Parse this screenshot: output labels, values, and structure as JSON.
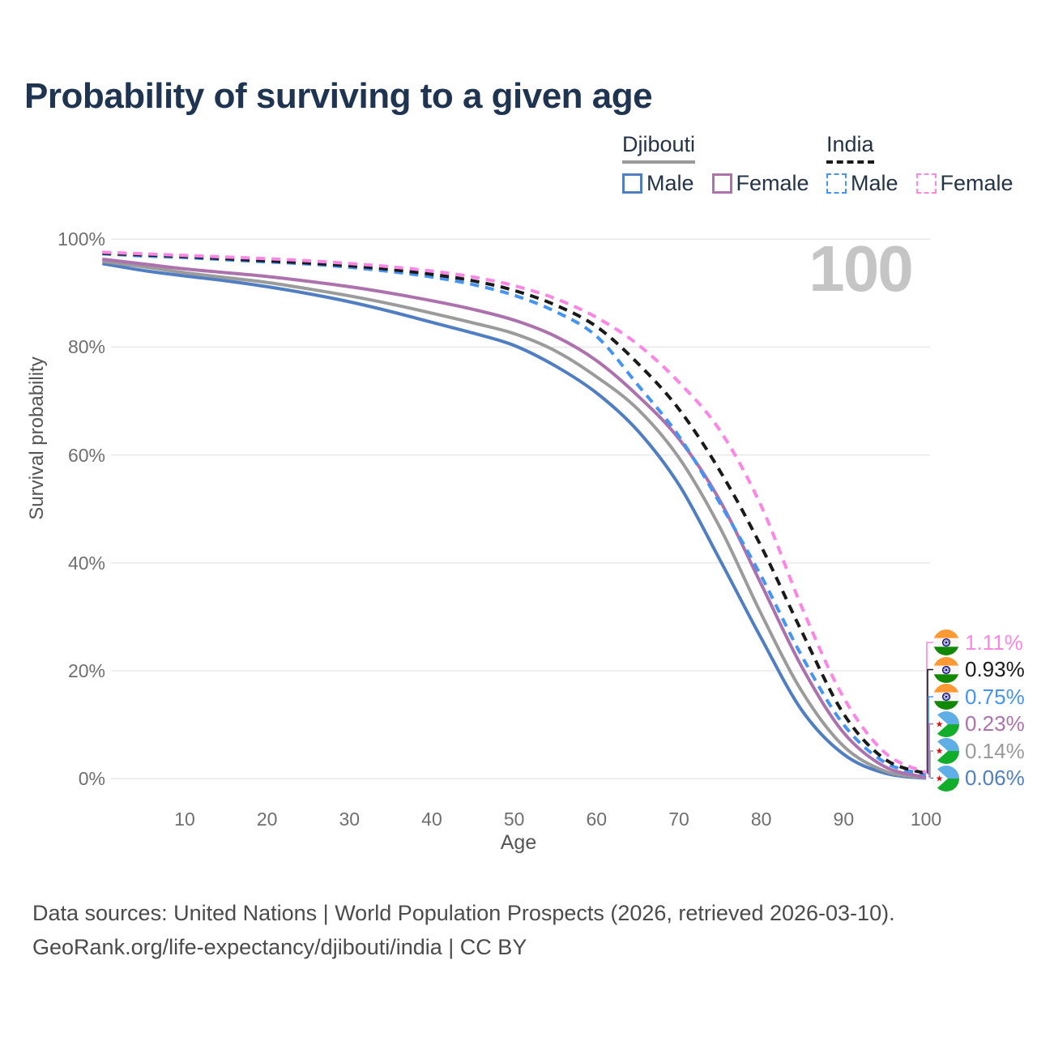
{
  "title": "Probability of surviving to a given age",
  "watermark": "100",
  "legend": {
    "groups": [
      {
        "label": "Djibouti",
        "line_style": "solid",
        "items": [
          {
            "label": "Male",
            "color": "#4f7ec2"
          },
          {
            "label": "Female",
            "color": "#ad72ad"
          }
        ]
      },
      {
        "label": "India",
        "line_style": "dashed",
        "items": [
          {
            "label": "Male",
            "color": "#4494f4"
          },
          {
            "label": "Female",
            "color": "#fc85e6"
          }
        ]
      }
    ]
  },
  "axes": {
    "x_label": "Age",
    "y_label": "Survival probability",
    "x_ticks": [
      10,
      20,
      30,
      40,
      50,
      60,
      70,
      80,
      90,
      100
    ],
    "y_ticks": [
      "100%",
      "80%",
      "60%",
      "40%",
      "20%",
      "0%"
    ]
  },
  "chart_data": {
    "type": "line",
    "title": "Probability of surviving to a given age",
    "xlabel": "Age",
    "ylabel": "Survival probability",
    "xlim": [
      0,
      100
    ],
    "ylim": [
      0,
      100
    ],
    "grid": "horizontal",
    "legend_position": "top-right",
    "x": [
      0,
      5,
      10,
      15,
      20,
      25,
      30,
      35,
      40,
      45,
      50,
      55,
      60,
      65,
      70,
      75,
      80,
      85,
      90,
      95,
      100
    ],
    "series": [
      {
        "name": "Djibouti Male",
        "country": "Djibouti",
        "sex": "Male",
        "color": "#4f7ec2",
        "dash": false,
        "values": [
          95.5,
          94.2,
          93.2,
          92.3,
          91.2,
          89.9,
          88.4,
          86.6,
          84.6,
          82.6,
          80.3,
          76.5,
          71.5,
          64.5,
          54.5,
          40.5,
          26.0,
          12.5,
          4.5,
          1.0,
          0.06
        ]
      },
      {
        "name": "Djibouti Both sexes",
        "country": "Djibouti",
        "sex": "Both",
        "color": "#9b9b9b",
        "dash": false,
        "values": [
          95.9,
          94.9,
          93.8,
          92.9,
          92.0,
          90.8,
          89.5,
          88.0,
          86.3,
          84.5,
          82.5,
          79.3,
          74.5,
          68.5,
          59.5,
          46.5,
          30.5,
          16.0,
          6.0,
          1.4,
          0.14
        ]
      },
      {
        "name": "Djibouti Female",
        "country": "Djibouti",
        "sex": "Female",
        "color": "#ad72ad",
        "dash": false,
        "values": [
          96.3,
          95.4,
          94.5,
          93.8,
          93.1,
          92.2,
          91.2,
          90.0,
          88.6,
          87.0,
          85.0,
          82.0,
          77.5,
          71.0,
          63.0,
          51.5,
          36.0,
          20.5,
          8.5,
          2.2,
          0.23
        ]
      },
      {
        "name": "India Male",
        "country": "India",
        "sex": "Male",
        "color": "#4494f4",
        "dash": true,
        "values": [
          97.3,
          96.9,
          96.6,
          96.2,
          95.8,
          95.4,
          94.8,
          94.0,
          93.0,
          91.6,
          89.6,
          86.6,
          82.0,
          73.0,
          63.5,
          51.0,
          37.5,
          22.5,
          10.0,
          3.0,
          0.75
        ]
      },
      {
        "name": "India Both sexes",
        "country": "India",
        "sex": "Both",
        "color": "#1a1a1a",
        "dash": true,
        "values": [
          97.4,
          97.1,
          96.8,
          96.4,
          96.0,
          95.6,
          95.1,
          94.4,
          93.5,
          92.3,
          90.5,
          87.8,
          83.8,
          77.0,
          68.5,
          57.0,
          43.0,
          27.0,
          12.0,
          3.6,
          0.93
        ]
      },
      {
        "name": "India Female",
        "country": "India",
        "sex": "Female",
        "color": "#fc85e6",
        "dash": true,
        "values": [
          97.6,
          97.3,
          97.0,
          96.7,
          96.4,
          96.0,
          95.5,
          94.9,
          94.1,
          93.0,
          91.4,
          89.0,
          85.5,
          80.5,
          73.5,
          64.5,
          50.5,
          31.5,
          15.0,
          4.8,
          1.11
        ]
      }
    ],
    "end_labels": [
      {
        "value": "1.11%",
        "series": "India Female",
        "flag": "india",
        "color": "#fc85e6"
      },
      {
        "value": "0.93%",
        "series": "India Both sexes",
        "flag": "india",
        "color": "#1a1a1a"
      },
      {
        "value": "0.75%",
        "series": "India Male",
        "flag": "india",
        "color": "#4494f4"
      },
      {
        "value": "0.23%",
        "series": "Djibouti Female",
        "flag": "djibouti",
        "color": "#ad72ad"
      },
      {
        "value": "0.14%",
        "series": "Djibouti Both sexes",
        "flag": "djibouti",
        "color": "#9b9b9b"
      },
      {
        "value": "0.06%",
        "series": "Djibouti Male",
        "flag": "djibouti",
        "color": "#4f7ec2"
      }
    ]
  },
  "footer": {
    "line1": "Data sources: United Nations | World Population Prospects (2026, retrieved 2026-03-10).",
    "line2": "GeoRank.org/life-expectancy/djibouti/india | CC BY"
  }
}
